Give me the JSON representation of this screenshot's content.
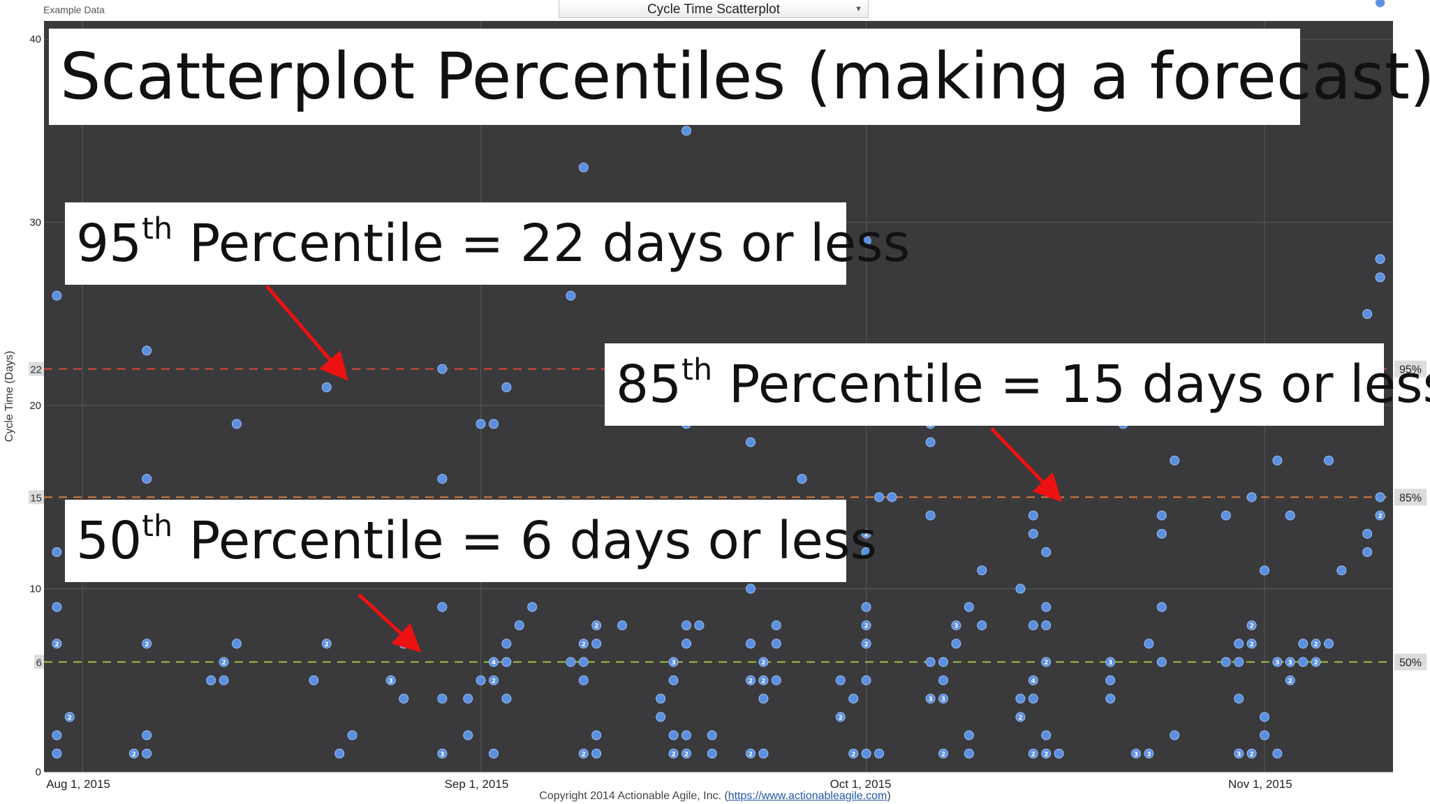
{
  "header": {
    "example_label": "Example Data",
    "chart_selector": "Cycle Time Scatterplot"
  },
  "footer": {
    "copyright_prefix": "Copyright 2014 Actionable Agile, Inc. (",
    "copyright_link": "https://www.actionableagile.com",
    "copyright_suffix": ")"
  },
  "callouts": {
    "title": "Scatterplot Percentiles (making a forecast)",
    "p95_num": "95",
    "p95_sup": "th",
    "p95_text": " Percentile = 22 days or less",
    "p85_num": "85",
    "p85_sup": "th",
    "p85_text": " Percentile = 15 days or less",
    "p50_num": "50",
    "p50_sup": "th",
    "p50_text": " Percentile =  6 days or less"
  },
  "colors": {
    "plot_background": "#3a3a3c",
    "point_fill": "#5b8fe0",
    "p95_line": "#d9473c",
    "p85_line": "#d97a3c",
    "p50_line": "#9bc23c",
    "arrow": "#ee1111"
  },
  "chart_data": {
    "type": "scatter",
    "ylabel": "Cycle Time (Days)",
    "xlabel": "",
    "title": "",
    "x_ticks": [
      "Aug 1, 2015",
      "Sep 1, 2015",
      "Oct 1, 2015",
      "Nov 1, 2015"
    ],
    "x_range": [
      "2015-07-29",
      "2015-11-11"
    ],
    "ylim": [
      0,
      41
    ],
    "y_ticks": [
      0,
      10,
      20,
      30,
      40
    ],
    "grid": true,
    "percentiles": [
      {
        "label": "95%",
        "value": 22,
        "value_label": "22",
        "color": "#d9473c"
      },
      {
        "label": "85%",
        "value": 15,
        "value_label": "15",
        "color": "#d97a3c"
      },
      {
        "label": "50%",
        "value": 6,
        "value_label": "6",
        "color": "#9bc23c"
      }
    ],
    "points": [
      {
        "x": "2015-07-30",
        "y": 26
      },
      {
        "x": "2015-07-30",
        "y": 12
      },
      {
        "x": "2015-07-30",
        "y": 9
      },
      {
        "x": "2015-07-30",
        "y": 7,
        "count": "2"
      },
      {
        "x": "2015-07-30",
        "y": 2
      },
      {
        "x": "2015-07-30",
        "y": 1
      },
      {
        "x": "2015-07-31",
        "y": 3,
        "count": "2"
      },
      {
        "x": "2015-08-05",
        "y": 1,
        "count": "2"
      },
      {
        "x": "2015-08-06",
        "y": 23
      },
      {
        "x": "2015-08-06",
        "y": 16
      },
      {
        "x": "2015-08-06",
        "y": 7,
        "count": "2"
      },
      {
        "x": "2015-08-06",
        "y": 2
      },
      {
        "x": "2015-08-06",
        "y": 1
      },
      {
        "x": "2015-08-11",
        "y": 5
      },
      {
        "x": "2015-08-12",
        "y": 6,
        "count": "2"
      },
      {
        "x": "2015-08-12",
        "y": 5
      },
      {
        "x": "2015-08-13",
        "y": 19
      },
      {
        "x": "2015-08-13",
        "y": 7
      },
      {
        "x": "2015-08-19",
        "y": 5
      },
      {
        "x": "2015-08-20",
        "y": 21
      },
      {
        "x": "2015-08-20",
        "y": 7,
        "count": "2"
      },
      {
        "x": "2015-08-21",
        "y": 1
      },
      {
        "x": "2015-08-22",
        "y": 2
      },
      {
        "x": "2015-08-25",
        "y": 5,
        "count": "3"
      },
      {
        "x": "2015-08-26",
        "y": 7
      },
      {
        "x": "2015-08-26",
        "y": 4
      },
      {
        "x": "2015-08-29",
        "y": 22
      },
      {
        "x": "2015-08-29",
        "y": 16
      },
      {
        "x": "2015-08-29",
        "y": 9
      },
      {
        "x": "2015-08-29",
        "y": 4
      },
      {
        "x": "2015-08-29",
        "y": 1,
        "count": "3"
      },
      {
        "x": "2015-08-31",
        "y": 4
      },
      {
        "x": "2015-08-31",
        "y": 2
      },
      {
        "x": "2015-09-01",
        "y": 19
      },
      {
        "x": "2015-09-01",
        "y": 5
      },
      {
        "x": "2015-09-02",
        "y": 19
      },
      {
        "x": "2015-09-02",
        "y": 6,
        "count": "4"
      },
      {
        "x": "2015-09-02",
        "y": 5,
        "count": "2"
      },
      {
        "x": "2015-09-02",
        "y": 1
      },
      {
        "x": "2015-09-03",
        "y": 21
      },
      {
        "x": "2015-09-03",
        "y": 7
      },
      {
        "x": "2015-09-03",
        "y": 6
      },
      {
        "x": "2015-09-03",
        "y": 4
      },
      {
        "x": "2015-09-04",
        "y": 8
      },
      {
        "x": "2015-09-05",
        "y": 9
      },
      {
        "x": "2015-09-08",
        "y": 26
      },
      {
        "x": "2015-09-08",
        "y": 6
      },
      {
        "x": "2015-09-09",
        "y": 33
      },
      {
        "x": "2015-09-09",
        "y": 7,
        "count": "2"
      },
      {
        "x": "2015-09-09",
        "y": 6
      },
      {
        "x": "2015-09-09",
        "y": 5
      },
      {
        "x": "2015-09-09",
        "y": 1,
        "count": "2"
      },
      {
        "x": "2015-09-10",
        "y": 8,
        "count": "2"
      },
      {
        "x": "2015-09-10",
        "y": 7
      },
      {
        "x": "2015-09-10",
        "y": 2
      },
      {
        "x": "2015-09-10",
        "y": 1
      },
      {
        "x": "2015-09-12",
        "y": 8
      },
      {
        "x": "2015-09-15",
        "y": 4
      },
      {
        "x": "2015-09-15",
        "y": 3
      },
      {
        "x": "2015-09-16",
        "y": 6,
        "count": "3"
      },
      {
        "x": "2015-09-16",
        "y": 5
      },
      {
        "x": "2015-09-16",
        "y": 2
      },
      {
        "x": "2015-09-16",
        "y": 1,
        "count": "2"
      },
      {
        "x": "2015-09-17",
        "y": 35
      },
      {
        "x": "2015-09-17",
        "y": 19
      },
      {
        "x": "2015-09-17",
        "y": 8
      },
      {
        "x": "2015-09-17",
        "y": 7
      },
      {
        "x": "2015-09-17",
        "y": 2
      },
      {
        "x": "2015-09-17",
        "y": 1,
        "count": "2"
      },
      {
        "x": "2015-09-18",
        "y": 27
      },
      {
        "x": "2015-09-18",
        "y": 8
      },
      {
        "x": "2015-09-19",
        "y": 2
      },
      {
        "x": "2015-09-19",
        "y": 1
      },
      {
        "x": "2015-09-22",
        "y": 18
      },
      {
        "x": "2015-09-22",
        "y": 10
      },
      {
        "x": "2015-09-22",
        "y": 7
      },
      {
        "x": "2015-09-22",
        "y": 5,
        "count": "2"
      },
      {
        "x": "2015-09-22",
        "y": 1,
        "count": "2"
      },
      {
        "x": "2015-09-23",
        "y": 6,
        "count": "2"
      },
      {
        "x": "2015-09-23",
        "y": 5,
        "count": "2"
      },
      {
        "x": "2015-09-23",
        "y": 4
      },
      {
        "x": "2015-09-23",
        "y": 1
      },
      {
        "x": "2015-09-24",
        "y": 8
      },
      {
        "x": "2015-09-24",
        "y": 7
      },
      {
        "x": "2015-09-24",
        "y": 5
      },
      {
        "x": "2015-09-26",
        "y": 16
      },
      {
        "x": "2015-09-29",
        "y": 5
      },
      {
        "x": "2015-09-29",
        "y": 3,
        "count": "2"
      },
      {
        "x": "2015-09-30",
        "y": 4
      },
      {
        "x": "2015-09-30",
        "y": 1,
        "count": "2"
      },
      {
        "x": "2015-10-01",
        "y": 29
      },
      {
        "x": "2015-10-01",
        "y": 13,
        "count": "2"
      },
      {
        "x": "2015-10-01",
        "y": 12
      },
      {
        "x": "2015-10-01",
        "y": 9
      },
      {
        "x": "2015-10-01",
        "y": 8,
        "count": "2"
      },
      {
        "x": "2015-10-01",
        "y": 7,
        "count": "2"
      },
      {
        "x": "2015-10-01",
        "y": 5
      },
      {
        "x": "2015-10-01",
        "y": 1
      },
      {
        "x": "2015-10-02",
        "y": 15
      },
      {
        "x": "2015-10-02",
        "y": 1
      },
      {
        "x": "2015-10-03",
        "y": 15
      },
      {
        "x": "2015-10-06",
        "y": 19,
        "count": "3"
      },
      {
        "x": "2015-10-06",
        "y": 18
      },
      {
        "x": "2015-10-06",
        "y": 14
      },
      {
        "x": "2015-10-06",
        "y": 6
      },
      {
        "x": "2015-10-06",
        "y": 4,
        "count": "3"
      },
      {
        "x": "2015-10-07",
        "y": 6
      },
      {
        "x": "2015-10-07",
        "y": 5
      },
      {
        "x": "2015-10-07",
        "y": 4,
        "count": "3"
      },
      {
        "x": "2015-10-07",
        "y": 1,
        "count": "2"
      },
      {
        "x": "2015-10-08",
        "y": 8,
        "count": "3"
      },
      {
        "x": "2015-10-08",
        "y": 7
      },
      {
        "x": "2015-10-09",
        "y": 9
      },
      {
        "x": "2015-10-09",
        "y": 2
      },
      {
        "x": "2015-10-09",
        "y": 1
      },
      {
        "x": "2015-10-10",
        "y": 11
      },
      {
        "x": "2015-10-10",
        "y": 8
      },
      {
        "x": "2015-10-13",
        "y": 10
      },
      {
        "x": "2015-10-13",
        "y": 4
      },
      {
        "x": "2015-10-13",
        "y": 3,
        "count": "2"
      },
      {
        "x": "2015-10-14",
        "y": 14
      },
      {
        "x": "2015-10-14",
        "y": 13
      },
      {
        "x": "2015-10-14",
        "y": 8
      },
      {
        "x": "2015-10-14",
        "y": 5,
        "count": "4"
      },
      {
        "x": "2015-10-14",
        "y": 4
      },
      {
        "x": "2015-10-14",
        "y": 1,
        "count": "2"
      },
      {
        "x": "2015-10-15",
        "y": 12
      },
      {
        "x": "2015-10-15",
        "y": 9
      },
      {
        "x": "2015-10-15",
        "y": 8
      },
      {
        "x": "2015-10-15",
        "y": 6,
        "count": "2"
      },
      {
        "x": "2015-10-15",
        "y": 2
      },
      {
        "x": "2015-10-15",
        "y": 1,
        "count": "2"
      },
      {
        "x": "2015-10-16",
        "y": 1
      },
      {
        "x": "2015-10-20",
        "y": 6,
        "count": "3"
      },
      {
        "x": "2015-10-20",
        "y": 5
      },
      {
        "x": "2015-10-20",
        "y": 4
      },
      {
        "x": "2015-10-21",
        "y": 19
      },
      {
        "x": "2015-10-22",
        "y": 1,
        "count": "3"
      },
      {
        "x": "2015-10-23",
        "y": 7
      },
      {
        "x": "2015-10-23",
        "y": 1,
        "count": "3"
      },
      {
        "x": "2015-10-24",
        "y": 14
      },
      {
        "x": "2015-10-24",
        "y": 13
      },
      {
        "x": "2015-10-24",
        "y": 9
      },
      {
        "x": "2015-10-24",
        "y": 6
      },
      {
        "x": "2015-10-25",
        "y": 17
      },
      {
        "x": "2015-10-25",
        "y": 2
      },
      {
        "x": "2015-10-29",
        "y": 14
      },
      {
        "x": "2015-10-29",
        "y": 6
      },
      {
        "x": "2015-10-30",
        "y": 7
      },
      {
        "x": "2015-10-30",
        "y": 6
      },
      {
        "x": "2015-10-30",
        "y": 4
      },
      {
        "x": "2015-10-30",
        "y": 1,
        "count": "3"
      },
      {
        "x": "2015-10-31",
        "y": 15
      },
      {
        "x": "2015-10-31",
        "y": 8,
        "count": "2"
      },
      {
        "x": "2015-10-31",
        "y": 7,
        "count": "2"
      },
      {
        "x": "2015-10-31",
        "y": 1,
        "count": "2"
      },
      {
        "x": "2015-11-01",
        "y": 11
      },
      {
        "x": "2015-11-01",
        "y": 3
      },
      {
        "x": "2015-11-01",
        "y": 2
      },
      {
        "x": "2015-11-02",
        "y": 1
      },
      {
        "x": "2015-11-02",
        "y": 17
      },
      {
        "x": "2015-11-02",
        "y": 6,
        "count": "3"
      },
      {
        "x": "2015-11-03",
        "y": 14
      },
      {
        "x": "2015-11-03",
        "y": 6,
        "count": "3"
      },
      {
        "x": "2015-11-03",
        "y": 5,
        "count": "2"
      },
      {
        "x": "2015-11-04",
        "y": 7
      },
      {
        "x": "2015-11-04",
        "y": 6
      },
      {
        "x": "2015-11-05",
        "y": 7,
        "count": "2"
      },
      {
        "x": "2015-11-05",
        "y": 6,
        "count": "2"
      },
      {
        "x": "2015-11-06",
        "y": 17
      },
      {
        "x": "2015-11-06",
        "y": 7
      },
      {
        "x": "2015-11-07",
        "y": 11
      },
      {
        "x": "2015-11-09",
        "y": 25
      },
      {
        "x": "2015-11-09",
        "y": 13
      },
      {
        "x": "2015-11-09",
        "y": 12
      },
      {
        "x": "2015-11-10",
        "y": 42
      },
      {
        "x": "2015-11-10",
        "y": 28
      },
      {
        "x": "2015-11-10",
        "y": 27
      },
      {
        "x": "2015-11-10",
        "y": 15
      },
      {
        "x": "2015-11-10",
        "y": 14,
        "count": "2"
      }
    ]
  }
}
